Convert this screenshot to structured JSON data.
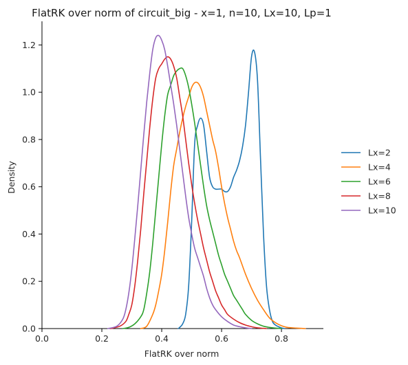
{
  "chart_data": {
    "type": "line",
    "title": "FlatRK over norm of circuit_big - x=1, n=10, Lx=10, Lp=1",
    "xlabel": "FlatRK over norm",
    "ylabel": "Density",
    "xlim": [
      0.0,
      0.94
    ],
    "ylim": [
      0.0,
      1.3
    ],
    "xticks": [
      "0.0",
      "0.2",
      "0.4",
      "0.6",
      "0.8"
    ],
    "yticks": [
      "0.0",
      "0.2",
      "0.4",
      "0.6",
      "0.8",
      "1.0",
      "1.2"
    ],
    "legend_position": "right",
    "grid": false,
    "series": [
      {
        "name": "Lx=2",
        "color": "#1f77b4",
        "x": [
          0.455,
          0.46,
          0.47,
          0.48,
          0.49,
          0.5,
          0.51,
          0.52,
          0.53,
          0.54,
          0.55,
          0.56,
          0.57,
          0.58,
          0.59,
          0.6,
          0.61,
          0.62,
          0.63,
          0.64,
          0.65,
          0.66,
          0.67,
          0.68,
          0.69,
          0.7,
          0.71,
          0.72,
          0.73,
          0.74,
          0.75,
          0.76,
          0.77,
          0.78,
          0.79,
          0.8,
          0.81
        ],
        "y": [
          0.0,
          0.005,
          0.02,
          0.06,
          0.18,
          0.45,
          0.78,
          0.86,
          0.89,
          0.86,
          0.75,
          0.64,
          0.6,
          0.59,
          0.59,
          0.59,
          0.58,
          0.58,
          0.6,
          0.64,
          0.67,
          0.71,
          0.77,
          0.86,
          1.0,
          1.15,
          1.17,
          1.05,
          0.72,
          0.4,
          0.18,
          0.08,
          0.03,
          0.015,
          0.008,
          0.003,
          0.0
        ]
      },
      {
        "name": "Lx=4",
        "color": "#ff7f0e",
        "x": [
          0.33,
          0.35,
          0.37,
          0.38,
          0.39,
          0.4,
          0.41,
          0.42,
          0.43,
          0.44,
          0.45,
          0.46,
          0.47,
          0.48,
          0.49,
          0.5,
          0.51,
          0.52,
          0.53,
          0.54,
          0.55,
          0.56,
          0.57,
          0.58,
          0.59,
          0.6,
          0.61,
          0.62,
          0.63,
          0.64,
          0.65,
          0.66,
          0.68,
          0.7,
          0.72,
          0.74,
          0.76,
          0.78,
          0.8,
          0.82,
          0.85,
          0.88
        ],
        "y": [
          0.0,
          0.01,
          0.06,
          0.1,
          0.16,
          0.23,
          0.33,
          0.45,
          0.58,
          0.69,
          0.76,
          0.83,
          0.89,
          0.94,
          0.98,
          1.02,
          1.04,
          1.04,
          1.02,
          0.98,
          0.92,
          0.86,
          0.8,
          0.75,
          0.68,
          0.6,
          0.53,
          0.47,
          0.42,
          0.37,
          0.33,
          0.3,
          0.23,
          0.17,
          0.12,
          0.08,
          0.045,
          0.025,
          0.012,
          0.005,
          0.002,
          0.0
        ]
      },
      {
        "name": "Lx=6",
        "color": "#2ca02c",
        "x": [
          0.27,
          0.29,
          0.31,
          0.33,
          0.34,
          0.35,
          0.36,
          0.37,
          0.38,
          0.39,
          0.4,
          0.41,
          0.42,
          0.43,
          0.44,
          0.45,
          0.46,
          0.47,
          0.48,
          0.49,
          0.5,
          0.51,
          0.52,
          0.53,
          0.54,
          0.55,
          0.56,
          0.57,
          0.58,
          0.59,
          0.6,
          0.61,
          0.62,
          0.63,
          0.64,
          0.65,
          0.66,
          0.67,
          0.68,
          0.7,
          0.72,
          0.74,
          0.76,
          0.78,
          0.8
        ],
        "y": [
          0.0,
          0.005,
          0.02,
          0.05,
          0.08,
          0.15,
          0.24,
          0.36,
          0.5,
          0.64,
          0.78,
          0.9,
          0.99,
          1.03,
          1.07,
          1.09,
          1.1,
          1.1,
          1.07,
          1.02,
          0.95,
          0.87,
          0.78,
          0.69,
          0.6,
          0.52,
          0.46,
          0.41,
          0.36,
          0.31,
          0.27,
          0.23,
          0.2,
          0.17,
          0.14,
          0.12,
          0.1,
          0.08,
          0.06,
          0.035,
          0.02,
          0.01,
          0.005,
          0.002,
          0.0
        ]
      },
      {
        "name": "Lx=8",
        "color": "#d62728",
        "x": [
          0.23,
          0.26,
          0.28,
          0.29,
          0.3,
          0.31,
          0.32,
          0.33,
          0.34,
          0.35,
          0.36,
          0.37,
          0.38,
          0.39,
          0.4,
          0.41,
          0.42,
          0.43,
          0.44,
          0.45,
          0.46,
          0.47,
          0.48,
          0.49,
          0.5,
          0.51,
          0.52,
          0.53,
          0.54,
          0.55,
          0.56,
          0.57,
          0.58,
          0.59,
          0.6,
          0.61,
          0.62,
          0.64,
          0.66,
          0.68,
          0.7,
          0.72,
          0.75
        ],
        "y": [
          0.0,
          0.01,
          0.03,
          0.06,
          0.1,
          0.18,
          0.29,
          0.42,
          0.57,
          0.71,
          0.85,
          0.97,
          1.06,
          1.1,
          1.12,
          1.14,
          1.15,
          1.14,
          1.11,
          1.06,
          0.98,
          0.9,
          0.8,
          0.7,
          0.61,
          0.53,
          0.46,
          0.4,
          0.34,
          0.29,
          0.24,
          0.2,
          0.16,
          0.13,
          0.1,
          0.08,
          0.06,
          0.04,
          0.025,
          0.015,
          0.008,
          0.003,
          0.0
        ]
      },
      {
        "name": "Lx=10",
        "color": "#9467bd",
        "x": [
          0.22,
          0.25,
          0.27,
          0.28,
          0.29,
          0.3,
          0.31,
          0.32,
          0.33,
          0.34,
          0.35,
          0.36,
          0.37,
          0.38,
          0.39,
          0.4,
          0.41,
          0.42,
          0.43,
          0.44,
          0.45,
          0.46,
          0.47,
          0.48,
          0.49,
          0.5,
          0.51,
          0.52,
          0.53,
          0.54,
          0.55,
          0.56,
          0.57,
          0.58,
          0.6,
          0.62,
          0.64,
          0.66,
          0.68,
          0.7
        ],
        "y": [
          0.0,
          0.01,
          0.04,
          0.08,
          0.15,
          0.25,
          0.38,
          0.52,
          0.67,
          0.82,
          0.96,
          1.08,
          1.18,
          1.23,
          1.24,
          1.22,
          1.18,
          1.11,
          1.03,
          0.95,
          0.86,
          0.76,
          0.66,
          0.56,
          0.47,
          0.4,
          0.34,
          0.3,
          0.26,
          0.22,
          0.17,
          0.13,
          0.1,
          0.08,
          0.05,
          0.03,
          0.015,
          0.008,
          0.003,
          0.0
        ]
      }
    ]
  }
}
